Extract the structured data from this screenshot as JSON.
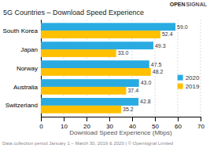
{
  "chart_data": {
    "type": "bar",
    "orientation": "horizontal",
    "title": "5G Countries – Download Speed Experience",
    "xlabel": "Download Speed Experience (Mbps)",
    "annotations": [
      "OPEN",
      "SIGNAL",
      "Data collection period January 1 – March 30, 2019 & 2020 | © Opensignal Limited"
    ],
    "categories": [
      "South Korea",
      "Japan",
      "Norway",
      "Australia",
      "Switzerland"
    ],
    "series": [
      {
        "name": "2020",
        "color": "#29ABE2",
        "values": [
          59.0,
          49.3,
          47.5,
          43.0,
          42.8
        ],
        "value_labels": [
          "59.0",
          "49.3",
          "47.5",
          "43.0",
          "42.8"
        ]
      },
      {
        "name": "2019",
        "color": "#FFC000",
        "values": [
          52.4,
          33.0,
          48.2,
          37.4,
          35.2
        ],
        "value_labels": [
          "52.4",
          "33.0",
          "48.2",
          "37.4",
          "35.2"
        ]
      }
    ],
    "xlim": [
      0,
      70
    ],
    "xticks": [
      0,
      10,
      20,
      30,
      40,
      50,
      60,
      70
    ],
    "grid": true,
    "legend": "right",
    "data_labels": true
  }
}
